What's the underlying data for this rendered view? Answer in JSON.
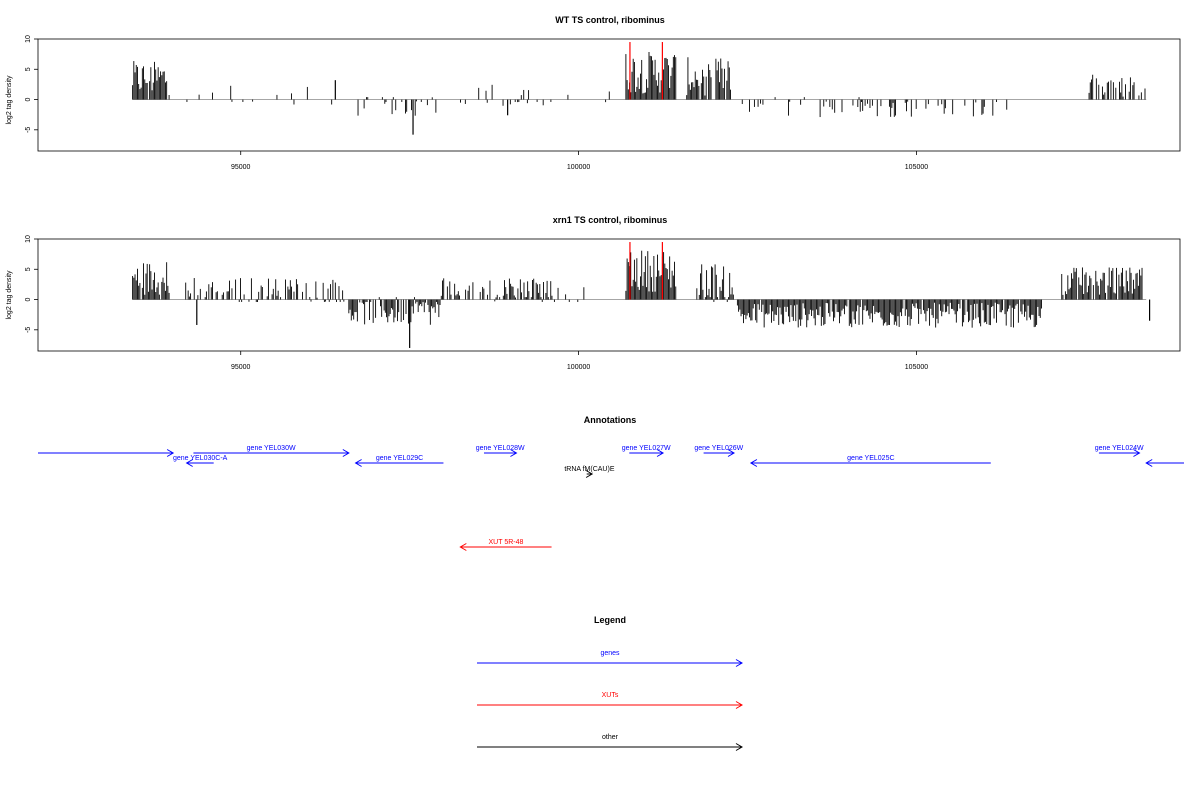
{
  "chart_data": [
    {
      "type": "bar",
      "title": "WT TS control, ribominus",
      "ylabel": "log2 tag density",
      "xlim": [
        92000,
        108900
      ],
      "ylim": [
        -8.5,
        10
      ],
      "yticks": [
        -5,
        0,
        5,
        10
      ],
      "xticks": [
        95000,
        100000,
        105000
      ],
      "xtick_labels": [
        "95000",
        "100000",
        "105000"
      ],
      "grid": false,
      "series": [
        {
          "color": "#000000",
          "segments": [
            {
              "start": 93400,
              "end": 93950,
              "mean": 3.5,
              "amp": 1.8,
              "density": 0.9
            },
            {
              "start": 94150,
              "end": 96600,
              "mean": 0.6,
              "amp": 1.2,
              "density": 0.12
            },
            {
              "start": 96700,
              "end": 97900,
              "mean": -1.2,
              "amp": 1.0,
              "density": 0.3
            },
            {
              "start": 98000,
              "end": 99500,
              "mean": 0.8,
              "amp": 1.2,
              "density": 0.2
            },
            {
              "start": 99500,
              "end": 100700,
              "mean": 0.6,
              "amp": 0.9,
              "density": 0.08
            },
            {
              "start": 100700,
              "end": 101450,
              "mean": 4.5,
              "amp": 2.2,
              "density": 1.0
            },
            {
              "start": 101600,
              "end": 102250,
              "mean": 3.8,
              "amp": 2.0,
              "density": 0.9
            },
            {
              "start": 102350,
              "end": 106200,
              "mean": -1.3,
              "amp": 1.0,
              "density": 0.22
            },
            {
              "start": 106300,
              "end": 106900,
              "mean": -0.8,
              "amp": 0.6,
              "density": 0.05
            },
            {
              "start": 107500,
              "end": 108400,
              "mean": 2.3,
              "amp": 1.2,
              "density": 0.55
            }
          ],
          "spikes": [
            {
              "x": 97550,
              "y": -5.8
            },
            {
              "x": 96400,
              "y": 3.2
            },
            {
              "x": 98950,
              "y": -2.6
            }
          ]
        },
        {
          "color": "#ff0000",
          "spikes": [
            {
              "x": 100760,
              "y": 9.5
            },
            {
              "x": 101240,
              "y": 9.5
            }
          ]
        }
      ]
    },
    {
      "type": "bar",
      "title": "xrn1 TS control, ribominus",
      "ylabel": "log2 tag density",
      "xlim": [
        92000,
        108900
      ],
      "ylim": [
        -8.5,
        10
      ],
      "yticks": [
        -5,
        0,
        5,
        10
      ],
      "xticks": [
        95000,
        100000,
        105000
      ],
      "xtick_labels": [
        "95000",
        "100000",
        "105000"
      ],
      "grid": false,
      "series": [
        {
          "color": "#000000",
          "segments": [
            {
              "start": 93400,
              "end": 93950,
              "mean": 3.5,
              "amp": 1.8,
              "density": 0.9
            },
            {
              "start": 94150,
              "end": 96600,
              "mean": 1.6,
              "amp": 1.3,
              "density": 0.5
            },
            {
              "start": 96600,
              "end": 97950,
              "mean": -2.0,
              "amp": 1.4,
              "density": 0.8
            },
            {
              "start": 97950,
              "end": 99700,
              "mean": 1.6,
              "amp": 1.2,
              "density": 0.55
            },
            {
              "start": 99700,
              "end": 100650,
              "mean": 1.0,
              "amp": 1.0,
              "density": 0.08
            },
            {
              "start": 100700,
              "end": 101450,
              "mean": 4.8,
              "amp": 2.2,
              "density": 1.0
            },
            {
              "start": 101750,
              "end": 102300,
              "mean": 3.0,
              "amp": 2.0,
              "density": 0.9
            },
            {
              "start": 102350,
              "end": 106850,
              "mean": -2.6,
              "amp": 1.3,
              "density": 0.95
            },
            {
              "start": 107150,
              "end": 108350,
              "mean": 3.0,
              "amp": 1.5,
              "density": 0.95
            }
          ],
          "spikes": [
            {
              "x": 97500,
              "y": -8.0
            },
            {
              "x": 94350,
              "y": -4.2
            },
            {
              "x": 108450,
              "y": -3.5
            }
          ]
        },
        {
          "color": "#ff0000",
          "spikes": [
            {
              "x": 100760,
              "y": 9.5
            },
            {
              "x": 101240,
              "y": 9.5
            }
          ]
        }
      ]
    }
  ],
  "annotations": {
    "title": "Annotations",
    "items": [
      {
        "label": "",
        "start": 92000,
        "end": 94000,
        "row": 0,
        "color": "#0000ff",
        "dir": "+"
      },
      {
        "label": "gene YEL030W",
        "start": 94300,
        "end": 96600,
        "row": 0,
        "color": "#0000ff",
        "dir": "+"
      },
      {
        "label": "gene YEL030C-A",
        "start": 94200,
        "end": 94600,
        "row": 1,
        "color": "#0000ff",
        "dir": "-"
      },
      {
        "label": "gene YEL029C",
        "start": 96700,
        "end": 98000,
        "row": 1,
        "color": "#0000ff",
        "dir": "-"
      },
      {
        "label": "gene YEL028W",
        "start": 98600,
        "end": 99080,
        "row": 0,
        "color": "#0000ff",
        "dir": "+"
      },
      {
        "label": "gene YEL027W",
        "start": 100750,
        "end": 101250,
        "row": 0,
        "color": "#0000ff",
        "dir": "+"
      },
      {
        "label": "gene YEL026W",
        "start": 101850,
        "end": 102300,
        "row": 0,
        "color": "#0000ff",
        "dir": "+"
      },
      {
        "label": "gene YEL025C",
        "start": 102550,
        "end": 106100,
        "row": 1,
        "color": "#0000ff",
        "dir": "-"
      },
      {
        "label": "gene YEL024W",
        "start": 107700,
        "end": 108300,
        "row": 0,
        "color": "#0000ff",
        "dir": "+"
      },
      {
        "label": "",
        "start": 108400,
        "end": 109100,
        "row": 1,
        "color": "#0000ff",
        "dir": "-"
      },
      {
        "label": "tRNA fM(CAU)E",
        "start": 100120,
        "end": 100200,
        "row": 2,
        "color": "#000000",
        "dir": "+"
      },
      {
        "label": "XUT 5R-48",
        "start": 98250,
        "end": 99600,
        "row": 3,
        "color": "#ff0000",
        "dir": "-"
      }
    ]
  },
  "legend": {
    "title": "Legend",
    "items": [
      {
        "label": "genes",
        "color": "#0000ff"
      },
      {
        "label": "XUTs",
        "color": "#ff0000"
      },
      {
        "label": "other",
        "color": "#000000"
      }
    ]
  }
}
